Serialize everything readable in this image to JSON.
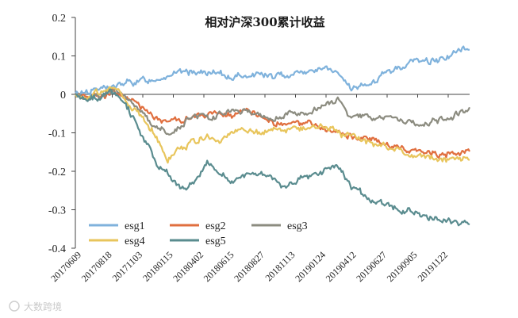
{
  "chart_data": {
    "type": "line",
    "title": "相对沪深300累计收益",
    "ylim": [
      -0.4,
      0.2
    ],
    "yticks": [
      0.2,
      0.1,
      0,
      -0.1,
      -0.2,
      -0.3,
      -0.4
    ],
    "ytick_labels": [
      "0.2",
      "0.1",
      "0",
      "-0.1",
      "-0.2",
      "-0.3",
      "-0.4"
    ],
    "x_tick_labels": [
      "20170609",
      "20170818",
      "20171103",
      "20180115",
      "20180402",
      "20180615",
      "20180827",
      "20181113",
      "20190124",
      "20190412",
      "20190627",
      "20190905",
      "20191122"
    ],
    "grid": false,
    "legend_position": "bottom-left",
    "series": [
      {
        "name": "esg1",
        "color": "#7fb2dc",
        "values": [
          0,
          0.01,
          0.015,
          0.02,
          0.03,
          0.035,
          0.04,
          0.05,
          0.055,
          0.06,
          0.055,
          0.05,
          0.045,
          0.05,
          0.055,
          0.045,
          0.05,
          0.06,
          0.06,
          0.07,
          0.05,
          0.015,
          0.02,
          0.04,
          0.06,
          0.075,
          0.09,
          0.085,
          0.095,
          0.11,
          0.12
        ]
      },
      {
        "name": "esg2",
        "color": "#e06f3f",
        "values": [
          0,
          -0.005,
          0,
          0.01,
          -0.01,
          -0.03,
          -0.06,
          -0.07,
          -0.065,
          -0.06,
          -0.055,
          -0.05,
          -0.055,
          -0.045,
          -0.06,
          -0.07,
          -0.08,
          -0.075,
          -0.08,
          -0.09,
          -0.1,
          -0.11,
          -0.115,
          -0.125,
          -0.13,
          -0.14,
          -0.145,
          -0.15,
          -0.155,
          -0.15,
          -0.15
        ]
      },
      {
        "name": "esg3",
        "color": "#8c8c80",
        "values": [
          0,
          -0.01,
          0,
          0.01,
          -0.005,
          -0.04,
          -0.08,
          -0.1,
          -0.09,
          -0.05,
          -0.06,
          -0.05,
          -0.045,
          -0.04,
          -0.055,
          -0.06,
          -0.05,
          -0.055,
          -0.04,
          -0.03,
          -0.01,
          -0.06,
          -0.055,
          -0.065,
          -0.06,
          -0.07,
          -0.075,
          -0.07,
          -0.065,
          -0.05,
          -0.04
        ]
      },
      {
        "name": "esg4",
        "color": "#e8c55c",
        "values": [
          0,
          -0.005,
          0.005,
          0.015,
          -0.02,
          -0.06,
          -0.1,
          -0.17,
          -0.14,
          -0.12,
          -0.11,
          -0.12,
          -0.1,
          -0.09,
          -0.1,
          -0.095,
          -0.09,
          -0.085,
          -0.09,
          -0.08,
          -0.1,
          -0.11,
          -0.12,
          -0.13,
          -0.14,
          -0.15,
          -0.16,
          -0.165,
          -0.17,
          -0.165,
          -0.17
        ]
      },
      {
        "name": "esg5",
        "color": "#5a8c8f",
        "values": [
          0,
          -0.01,
          -0.005,
          0.01,
          -0.04,
          -0.1,
          -0.17,
          -0.2,
          -0.25,
          -0.23,
          -0.18,
          -0.2,
          -0.23,
          -0.21,
          -0.2,
          -0.22,
          -0.24,
          -0.22,
          -0.21,
          -0.2,
          -0.19,
          -0.24,
          -0.26,
          -0.28,
          -0.29,
          -0.3,
          -0.31,
          -0.32,
          -0.33,
          -0.33,
          -0.33
        ]
      }
    ]
  },
  "watermark": "大数跨境"
}
